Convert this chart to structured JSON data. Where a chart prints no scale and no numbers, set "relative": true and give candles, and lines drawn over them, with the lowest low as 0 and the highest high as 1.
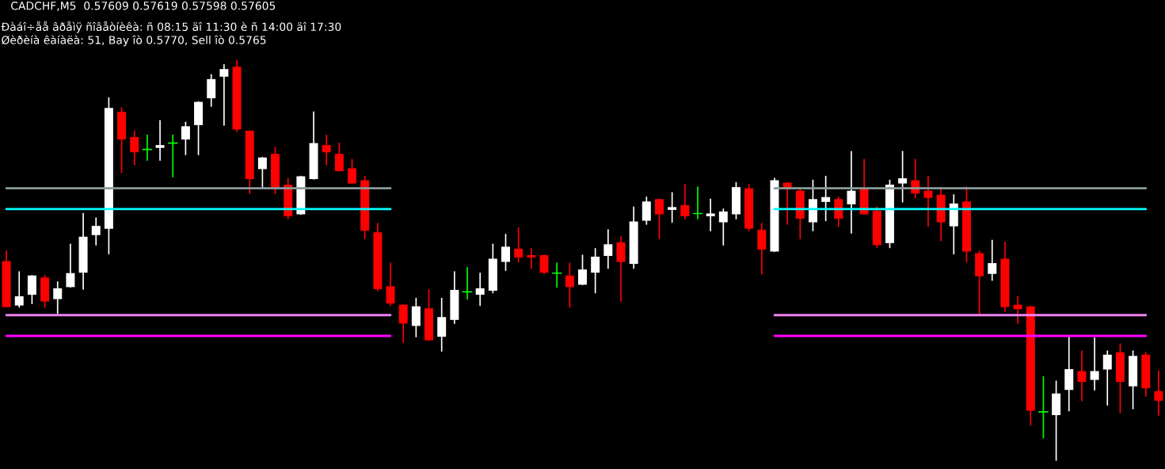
{
  "chart_data": {
    "type": "candlestick",
    "relative": true,
    "title": "CADCHF,M5  0.57609 0.57619 0.57598 0.57605",
    "annotations": [
      "Ðàáî÷åå âðåìÿ ñîâåòíèêà: ñ 08:15 äî 11:30 è ñ 14:00 äî 17:30",
      "Øèðèíà êàíàëà: 51, Bay îò 0.5770, Sell îò 0.5765"
    ],
    "categories": [
      null,
      null,
      null,
      null,
      null,
      null,
      null,
      null,
      null,
      null,
      null,
      null,
      null,
      null,
      null,
      null,
      null,
      null,
      null,
      null,
      null,
      null,
      null,
      null,
      null,
      null,
      null,
      null,
      null,
      null,
      null,
      null,
      null,
      null,
      null,
      null,
      null,
      null,
      null,
      null,
      null,
      null,
      null,
      null,
      null,
      null,
      null,
      null,
      null,
      null,
      null,
      null,
      null,
      null,
      null,
      null,
      null,
      null,
      null,
      null,
      null,
      null,
      null,
      null,
      null,
      null,
      null,
      null,
      null,
      null,
      null,
      null,
      null,
      null,
      null,
      null,
      null,
      null,
      null,
      null,
      null,
      null,
      null,
      null,
      null,
      null,
      null,
      null,
      null,
      null,
      null
    ],
    "ohlc": [
      [
        0.498,
        0.523,
        0.383,
        0.383
      ],
      [
        0.387,
        0.471,
        0.383,
        0.41
      ],
      [
        0.414,
        0.462,
        0.392,
        0.462
      ],
      [
        0.457,
        0.462,
        0.383,
        0.397
      ],
      [
        0.403,
        0.446,
        0.367,
        0.43
      ],
      [
        0.433,
        0.54,
        0.433,
        0.468
      ],
      [
        0.469,
        0.617,
        0.428,
        0.559
      ],
      [
        0.563,
        0.606,
        0.538,
        0.586
      ],
      [
        0.579,
        0.906,
        0.516,
        0.881
      ],
      [
        0.871,
        0.881,
        0.719,
        0.802
      ],
      [
        0.808,
        0.824,
        0.739,
        0.77
      ],
      [
        0.777,
        0.813,
        0.75,
        0.777
      ],
      [
        0.781,
        0.849,
        0.75,
        0.788
      ],
      [
        0.793,
        0.813,
        0.709,
        0.793
      ],
      [
        0.802,
        0.845,
        0.764,
        0.835
      ],
      [
        0.838,
        0.896,
        0.764,
        0.896
      ],
      [
        0.905,
        0.964,
        0.885,
        0.953
      ],
      [
        0.959,
        0.989,
        0.838,
        0.978
      ],
      [
        0.984,
        1,
        0.822,
        0.827
      ],
      [
        0.824,
        0.824,
        0.667,
        0.703
      ],
      [
        0.728,
        0.757,
        0.68,
        0.757
      ],
      [
        0.766,
        0.782,
        0.667,
        0.682
      ],
      [
        0.689,
        0.705,
        0.604,
        0.61
      ],
      [
        0.615,
        0.71,
        0.615,
        0.71
      ],
      [
        0.703,
        0.871,
        0.703,
        0.793
      ],
      [
        0.788,
        0.813,
        0.739,
        0.77
      ],
      [
        0.766,
        0.793,
        0.723,
        0.723
      ],
      [
        0.73,
        0.752,
        0.692,
        0.692
      ],
      [
        0.7,
        0.71,
        0.554,
        0.574
      ],
      [
        0.57,
        0.592,
        0.424,
        0.428
      ],
      [
        0.435,
        0.493,
        0.387,
        0.392
      ],
      [
        0.389,
        0.389,
        0.295,
        0.342
      ],
      [
        0.336,
        0.405,
        0.309,
        0.385
      ],
      [
        0.38,
        0.426,
        0.3,
        0.3
      ],
      [
        0.309,
        0.405,
        0.273,
        0.358
      ],
      [
        0.351,
        0.471,
        0.342,
        0.426
      ],
      [
        0.421,
        0.482,
        0.403,
        0.421
      ],
      [
        0.414,
        0.468,
        0.387,
        0.43
      ],
      [
        0.424,
        0.54,
        0.419,
        0.504
      ],
      [
        0.496,
        0.565,
        0.475,
        0.534
      ],
      [
        0.529,
        0.581,
        0.496,
        0.507
      ],
      [
        0.513,
        0.529,
        0.48,
        0.507
      ],
      [
        0.513,
        0.513,
        0.466,
        0.469
      ],
      [
        0.468,
        0.493,
        0.433,
        0.468
      ],
      [
        0.462,
        0.493,
        0.383,
        0.433
      ],
      [
        0.439,
        0.513,
        0.439,
        0.477
      ],
      [
        0.469,
        0.529,
        0.419,
        0.509
      ],
      [
        0.511,
        0.576,
        0.48,
        0.54
      ],
      [
        0.545,
        0.559,
        0.397,
        0.496
      ],
      [
        0.491,
        0.633,
        0.48,
        0.597
      ],
      [
        0.599,
        0.658,
        0.59,
        0.647
      ],
      [
        0.653,
        0.653,
        0.554,
        0.615
      ],
      [
        0.626,
        0.669,
        0.595,
        0.633
      ],
      [
        0.638,
        0.689,
        0.604,
        0.61
      ],
      [
        0.617,
        0.683,
        0.604,
        0.617
      ],
      [
        0.61,
        0.653,
        0.574,
        0.617
      ],
      [
        0.595,
        0.628,
        0.538,
        0.622
      ],
      [
        0.615,
        0.694,
        0.604,
        0.683
      ],
      [
        0.68,
        0.689,
        0.574,
        0.579
      ],
      [
        0.576,
        0.592,
        0.466,
        0.527
      ],
      [
        0.522,
        0.705,
        0.522,
        0.7
      ],
      [
        0.694,
        0.694,
        0.59,
        0.68
      ],
      [
        0.674,
        0.678,
        0.554,
        0.604
      ],
      [
        0.595,
        0.7,
        0.574,
        0.653
      ],
      [
        0.646,
        0.71,
        0.599,
        0.658
      ],
      [
        0.653,
        0.658,
        0.585,
        0.604
      ],
      [
        0.64,
        0.772,
        0.568,
        0.674
      ],
      [
        0.678,
        0.752,
        0.615,
        0.615
      ],
      [
        0.624,
        0.633,
        0.532,
        0.538
      ],
      [
        0.543,
        0.7,
        0.532,
        0.689
      ],
      [
        0.692,
        0.772,
        0.646,
        0.705
      ],
      [
        0.7,
        0.752,
        0.656,
        0.667
      ],
      [
        0.674,
        0.71,
        0.585,
        0.656
      ],
      [
        0.664,
        0.683,
        0.549,
        0.595
      ],
      [
        0.585,
        0.664,
        0.516,
        0.642
      ],
      [
        0.647,
        0.683,
        0.496,
        0.522
      ],
      [
        0.518,
        0.523,
        0.365,
        0.46
      ],
      [
        0.466,
        0.55,
        0.45,
        0.493
      ],
      [
        0.504,
        0.545,
        0.372,
        0.383
      ],
      [
        0.389,
        0.41,
        0.342,
        0.378
      ],
      [
        0.385,
        0.385,
        0.088,
        0.124
      ],
      [
        0.121,
        0.209,
        0.056,
        0.121
      ],
      [
        0.113,
        0.198,
        0,
        0.167
      ],
      [
        0.176,
        0.309,
        0.124,
        0.228
      ],
      [
        0.223,
        0.273,
        0.149,
        0.196
      ],
      [
        0.201,
        0.306,
        0.176,
        0.223
      ],
      [
        0.227,
        0.273,
        0.138,
        0.264
      ],
      [
        0.27,
        0.291,
        0.119,
        0.196
      ],
      [
        0.185,
        0.273,
        0.129,
        0.261
      ],
      [
        0.264,
        0.27,
        0.16,
        0.18
      ],
      [
        0.173,
        0.223,
        0.113,
        0.149
      ]
    ],
    "colors": [
      "#ff0000",
      "#ffffff",
      "#ffffff",
      "#ff0000",
      "#ffffff",
      "#ffffff",
      "#ffffff",
      "#ffffff",
      "#ffffff",
      "#ff0000",
      "#ff0000",
      "#00ff00",
      "#ffffff",
      "#00ff00",
      "#ffffff",
      "#ffffff",
      "#ffffff",
      "#ffffff",
      "#ff0000",
      "#ff0000",
      "#ffffff",
      "#ff0000",
      "#ff0000",
      "#ffffff",
      "#ffffff",
      "#ff0000",
      "#ff0000",
      "#ff0000",
      "#ff0000",
      "#ff0000",
      "#ff0000",
      "#ff0000",
      "#ffffff",
      "#ff0000",
      "#ffffff",
      "#ffffff",
      "#00ff00",
      "#ffffff",
      "#ffffff",
      "#ffffff",
      "#ff0000",
      "#ff0000",
      "#ff0000",
      "#00ff00",
      "#ff0000",
      "#ffffff",
      "#ffffff",
      "#ffffff",
      "#ff0000",
      "#ffffff",
      "#ffffff",
      "#ff0000",
      "#ffffff",
      "#ff0000",
      "#00ff00",
      "#ffffff",
      "#ffffff",
      "#ffffff",
      "#ff0000",
      "#ff0000",
      "#ffffff",
      "#ff0000",
      "#ff0000",
      "#ffffff",
      "#ffffff",
      "#ff0000",
      "#ffffff",
      "#ff0000",
      "#ff0000",
      "#ffffff",
      "#ffffff",
      "#ff0000",
      "#ff0000",
      "#ff0000",
      "#ffffff",
      "#ff0000",
      "#ff0000",
      "#ffffff",
      "#ff0000",
      "#ff0000",
      "#ff0000",
      "#00ff00",
      "#ffffff",
      "#ffffff",
      "#ff0000",
      "#ffffff",
      "#ffffff",
      "#ff0000",
      "#ffffff",
      "#ff0000",
      "#ff0000"
    ],
    "series": [
      {
        "type": "line",
        "color": "#8a9a9a",
        "values": [
          0.68,
          0.68,
          0.68,
          0.68,
          0.68,
          0.68,
          0.68,
          0.68,
          0.68,
          0.68,
          0.68,
          0.68,
          0.68,
          0.68,
          0.68,
          0.68,
          0.68,
          0.68,
          0.68,
          0.68,
          0.68,
          0.68,
          0.68,
          0.68,
          0.68,
          0.68,
          0.68,
          0.68,
          0.68,
          0.68,
          0.68,
          null,
          null,
          null,
          null,
          null,
          null,
          null,
          null,
          null,
          null,
          null,
          null,
          null,
          null,
          null,
          null,
          null,
          null,
          null,
          null,
          null,
          null,
          null,
          null,
          null,
          null,
          null,
          null,
          null,
          0.68,
          0.68,
          0.68,
          0.68,
          0.68,
          0.68,
          0.68,
          0.68,
          0.68,
          0.68,
          0.68,
          0.68,
          0.68,
          0.68,
          0.68,
          0.68,
          0.68,
          0.68,
          0.68,
          0.68,
          0.68,
          0.68,
          0.68,
          0.68,
          0.68,
          0.68,
          0.68,
          0.68,
          0.68,
          0.68,
          null
        ]
      },
      {
        "type": "line",
        "color": "#00ffff",
        "values": [
          0.628,
          0.628,
          0.628,
          0.628,
          0.628,
          0.628,
          0.628,
          0.628,
          0.628,
          0.628,
          0.628,
          0.628,
          0.628,
          0.628,
          0.628,
          0.628,
          0.628,
          0.628,
          0.628,
          0.628,
          0.628,
          0.628,
          0.628,
          0.628,
          0.628,
          0.628,
          0.628,
          0.628,
          0.628,
          0.628,
          0.628,
          null,
          null,
          null,
          null,
          null,
          null,
          null,
          null,
          null,
          null,
          null,
          null,
          null,
          null,
          null,
          null,
          null,
          null,
          null,
          null,
          null,
          null,
          null,
          null,
          null,
          null,
          null,
          null,
          null,
          0.628,
          0.628,
          0.628,
          0.628,
          0.628,
          0.628,
          0.628,
          0.628,
          0.628,
          0.628,
          0.628,
          0.628,
          0.628,
          0.628,
          0.628,
          0.628,
          0.628,
          0.628,
          0.628,
          0.628,
          0.628,
          0.628,
          0.628,
          0.628,
          0.628,
          0.628,
          0.628,
          0.628,
          0.628,
          0.628,
          null
        ]
      },
      {
        "type": "line",
        "color": "#ee82ee",
        "values": [
          0.363,
          0.363,
          0.363,
          0.363,
          0.363,
          0.363,
          0.363,
          0.363,
          0.363,
          0.363,
          0.363,
          0.363,
          0.363,
          0.363,
          0.363,
          0.363,
          0.363,
          0.363,
          0.363,
          0.363,
          0.363,
          0.363,
          0.363,
          0.363,
          0.363,
          0.363,
          0.363,
          0.363,
          0.363,
          0.363,
          0.363,
          null,
          null,
          null,
          null,
          null,
          null,
          null,
          null,
          null,
          null,
          null,
          null,
          null,
          null,
          null,
          null,
          null,
          null,
          null,
          null,
          null,
          null,
          null,
          null,
          null,
          null,
          null,
          null,
          null,
          0.363,
          0.363,
          0.363,
          0.363,
          0.363,
          0.363,
          0.363,
          0.363,
          0.363,
          0.363,
          0.363,
          0.363,
          0.363,
          0.363,
          0.363,
          0.363,
          0.363,
          0.363,
          0.363,
          0.363,
          0.363,
          0.363,
          0.363,
          0.363,
          0.363,
          0.363,
          0.363,
          0.363,
          0.363,
          0.363,
          null
        ]
      },
      {
        "type": "line",
        "color": "#ff00ff",
        "values": [
          0.311,
          0.311,
          0.311,
          0.311,
          0.311,
          0.311,
          0.311,
          0.311,
          0.311,
          0.311,
          0.311,
          0.311,
          0.311,
          0.311,
          0.311,
          0.311,
          0.311,
          0.311,
          0.311,
          0.311,
          0.311,
          0.311,
          0.311,
          0.311,
          0.311,
          0.311,
          0.311,
          0.311,
          0.311,
          0.311,
          0.311,
          null,
          null,
          null,
          null,
          null,
          null,
          null,
          null,
          null,
          null,
          null,
          null,
          null,
          null,
          null,
          null,
          null,
          null,
          null,
          null,
          null,
          null,
          null,
          null,
          null,
          null,
          null,
          null,
          null,
          0.311,
          0.311,
          0.311,
          0.311,
          0.311,
          0.311,
          0.311,
          0.311,
          0.311,
          0.311,
          0.311,
          0.311,
          0.311,
          0.311,
          0.311,
          0.311,
          0.311,
          0.311,
          0.311,
          0.311,
          0.311,
          0.311,
          0.311,
          0.311,
          0.311,
          0.311,
          0.311,
          0.311,
          0.311,
          0.311,
          null
        ]
      }
    ]
  }
}
